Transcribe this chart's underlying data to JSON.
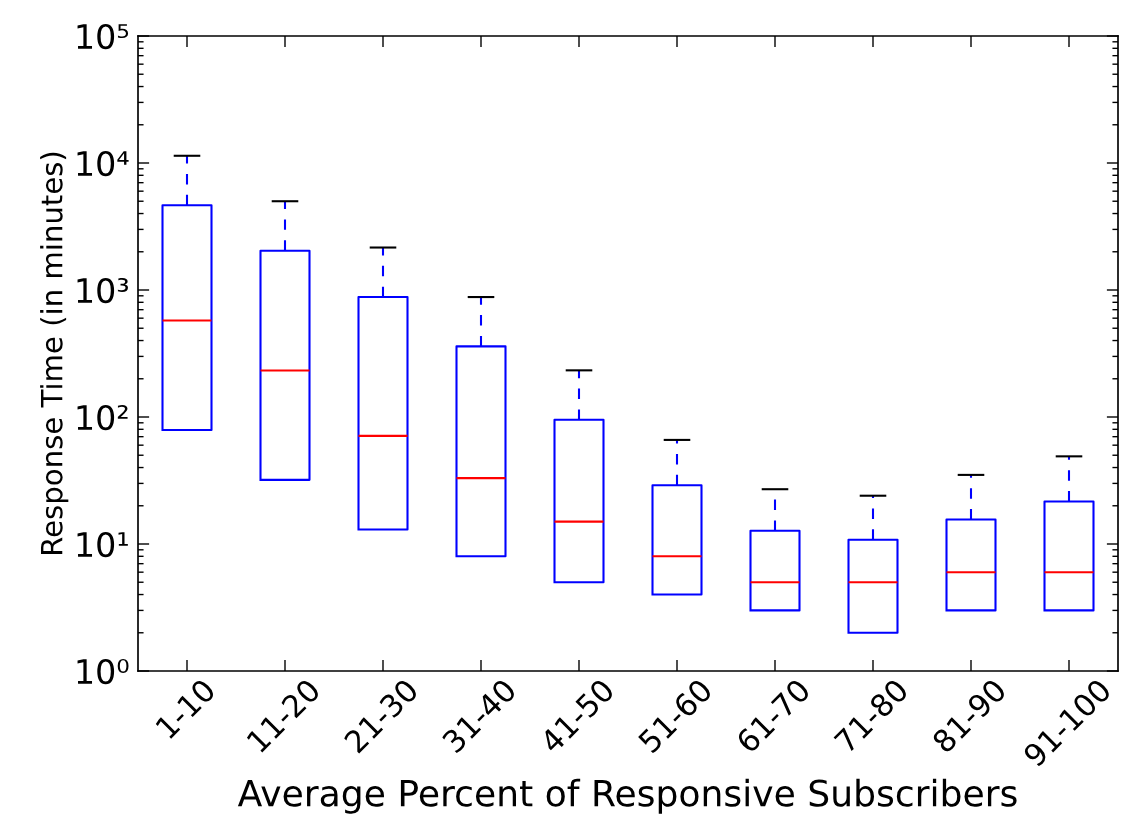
{
  "chart_data": {
    "type": "box",
    "xlabel": "Average Percent of Responsive Subscribers",
    "ylabel": "Response Time (in minutes)",
    "categories": [
      "1-10",
      "11-20",
      "21-30",
      "31-40",
      "41-50",
      "51-60",
      "61-70",
      "71-80",
      "81-90",
      "91-100"
    ],
    "series": [
      {
        "color": "#0000ff",
        "boxes": [
          {
            "low": 79,
            "q1": 79,
            "median": 575,
            "q3": 4650,
            "high": 11400
          },
          {
            "low": 32,
            "q1": 32,
            "median": 232,
            "q3": 2040,
            "high": 5000
          },
          {
            "low": 13,
            "q1": 13,
            "median": 71,
            "q3": 880,
            "high": 2160
          },
          {
            "low": 8,
            "q1": 8,
            "median": 33,
            "q3": 360,
            "high": 880
          },
          {
            "low": 5,
            "q1": 5,
            "median": 15,
            "q3": 95,
            "high": 233
          },
          {
            "low": 4,
            "q1": 4,
            "median": 8,
            "q3": 29,
            "high": 66
          },
          {
            "low": 3,
            "q1": 3,
            "median": 5,
            "q3": 12.7,
            "high": 27
          },
          {
            "low": 2,
            "q1": 2,
            "median": 5,
            "q3": 10.8,
            "high": 24
          },
          {
            "low": 3,
            "q1": 3,
            "median": 6,
            "q3": 15.6,
            "high": 35
          },
          {
            "low": 3,
            "q1": 3,
            "median": 6,
            "q3": 21.6,
            "high": 49
          }
        ]
      }
    ],
    "log": "y",
    "ylim": [
      1,
      100000
    ],
    "yticks": [
      {
        "value": 1,
        "label": "10⁰"
      },
      {
        "value": 10,
        "label": "10¹"
      },
      {
        "value": 100,
        "label": "10²"
      },
      {
        "value": 1000,
        "label": "10³"
      },
      {
        "value": 10000,
        "label": "10⁴"
      },
      {
        "value": 100000,
        "label": "10⁵"
      }
    ]
  }
}
